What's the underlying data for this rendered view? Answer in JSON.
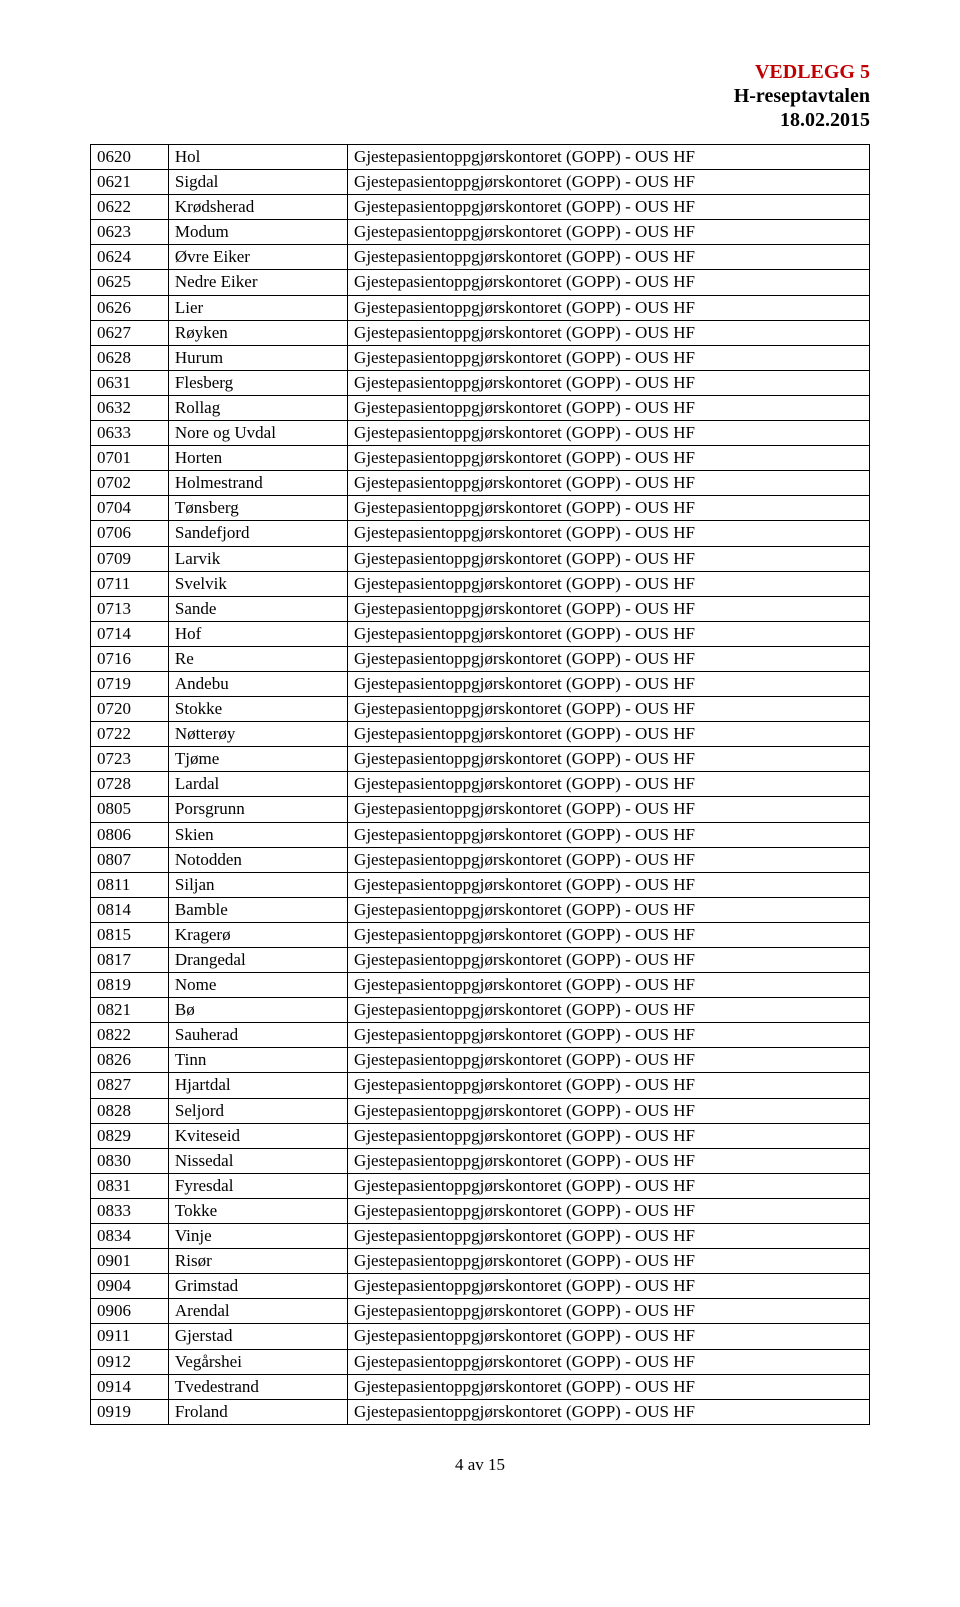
{
  "header": {
    "line1": "VEDLEGG 5",
    "line2": "H-reseptavtalen",
    "line3": "18.02.2015",
    "line1_color": "#c00000"
  },
  "table": {
    "rows": [
      [
        "0620",
        "Hol",
        "Gjestepasientoppgjørskontoret (GOPP) - OUS HF"
      ],
      [
        "0621",
        "Sigdal",
        "Gjestepasientoppgjørskontoret (GOPP) - OUS HF"
      ],
      [
        "0622",
        "Krødsherad",
        "Gjestepasientoppgjørskontoret (GOPP) - OUS HF"
      ],
      [
        "0623",
        "Modum",
        "Gjestepasientoppgjørskontoret (GOPP) - OUS HF"
      ],
      [
        "0624",
        "Øvre Eiker",
        "Gjestepasientoppgjørskontoret (GOPP) - OUS HF"
      ],
      [
        "0625",
        "Nedre Eiker",
        "Gjestepasientoppgjørskontoret (GOPP) - OUS HF"
      ],
      [
        "0626",
        "Lier",
        "Gjestepasientoppgjørskontoret (GOPP) - OUS HF"
      ],
      [
        "0627",
        "Røyken",
        "Gjestepasientoppgjørskontoret (GOPP) - OUS HF"
      ],
      [
        "0628",
        "Hurum",
        "Gjestepasientoppgjørskontoret (GOPP) - OUS HF"
      ],
      [
        "0631",
        "Flesberg",
        "Gjestepasientoppgjørskontoret (GOPP) - OUS HF"
      ],
      [
        "0632",
        "Rollag",
        "Gjestepasientoppgjørskontoret (GOPP) - OUS HF"
      ],
      [
        "0633",
        "Nore og Uvdal",
        "Gjestepasientoppgjørskontoret (GOPP) - OUS HF"
      ],
      [
        "0701",
        "Horten",
        "Gjestepasientoppgjørskontoret (GOPP) - OUS HF"
      ],
      [
        "0702",
        "Holmestrand",
        "Gjestepasientoppgjørskontoret (GOPP) - OUS HF"
      ],
      [
        "0704",
        "Tønsberg",
        "Gjestepasientoppgjørskontoret (GOPP) - OUS HF"
      ],
      [
        "0706",
        "Sandefjord",
        "Gjestepasientoppgjørskontoret (GOPP) - OUS HF"
      ],
      [
        "0709",
        "Larvik",
        "Gjestepasientoppgjørskontoret (GOPP) - OUS HF"
      ],
      [
        "0711",
        "Svelvik",
        "Gjestepasientoppgjørskontoret (GOPP) - OUS HF"
      ],
      [
        "0713",
        "Sande",
        "Gjestepasientoppgjørskontoret (GOPP) - OUS HF"
      ],
      [
        "0714",
        "Hof",
        "Gjestepasientoppgjørskontoret (GOPP) - OUS HF"
      ],
      [
        "0716",
        "Re",
        "Gjestepasientoppgjørskontoret (GOPP) - OUS HF"
      ],
      [
        "0719",
        "Andebu",
        "Gjestepasientoppgjørskontoret (GOPP) - OUS HF"
      ],
      [
        "0720",
        "Stokke",
        "Gjestepasientoppgjørskontoret (GOPP) - OUS HF"
      ],
      [
        "0722",
        "Nøtterøy",
        "Gjestepasientoppgjørskontoret (GOPP) - OUS HF"
      ],
      [
        "0723",
        "Tjøme",
        "Gjestepasientoppgjørskontoret (GOPP) - OUS HF"
      ],
      [
        "0728",
        "Lardal",
        "Gjestepasientoppgjørskontoret (GOPP) - OUS HF"
      ],
      [
        "0805",
        "Porsgrunn",
        "Gjestepasientoppgjørskontoret (GOPP) - OUS HF"
      ],
      [
        "0806",
        "Skien",
        "Gjestepasientoppgjørskontoret (GOPP) - OUS HF"
      ],
      [
        "0807",
        "Notodden",
        "Gjestepasientoppgjørskontoret (GOPP) - OUS HF"
      ],
      [
        "0811",
        "Siljan",
        "Gjestepasientoppgjørskontoret (GOPP) - OUS HF"
      ],
      [
        "0814",
        "Bamble",
        "Gjestepasientoppgjørskontoret (GOPP) - OUS HF"
      ],
      [
        "0815",
        "Kragerø",
        "Gjestepasientoppgjørskontoret (GOPP) - OUS HF"
      ],
      [
        "0817",
        "Drangedal",
        "Gjestepasientoppgjørskontoret (GOPP) - OUS HF"
      ],
      [
        "0819",
        "Nome",
        "Gjestepasientoppgjørskontoret (GOPP) - OUS HF"
      ],
      [
        "0821",
        "Bø",
        "Gjestepasientoppgjørskontoret (GOPP) - OUS HF"
      ],
      [
        "0822",
        "Sauherad",
        "Gjestepasientoppgjørskontoret (GOPP) - OUS HF"
      ],
      [
        "0826",
        "Tinn",
        "Gjestepasientoppgjørskontoret (GOPP) - OUS HF"
      ],
      [
        "0827",
        "Hjartdal",
        "Gjestepasientoppgjørskontoret (GOPP) - OUS HF"
      ],
      [
        "0828",
        "Seljord",
        "Gjestepasientoppgjørskontoret (GOPP) - OUS HF"
      ],
      [
        "0829",
        "Kviteseid",
        "Gjestepasientoppgjørskontoret (GOPP) - OUS HF"
      ],
      [
        "0830",
        "Nissedal",
        "Gjestepasientoppgjørskontoret (GOPP) - OUS HF"
      ],
      [
        "0831",
        "Fyresdal",
        "Gjestepasientoppgjørskontoret (GOPP) - OUS HF"
      ],
      [
        "0833",
        "Tokke",
        "Gjestepasientoppgjørskontoret (GOPP) - OUS HF"
      ],
      [
        "0834",
        "Vinje",
        "Gjestepasientoppgjørskontoret (GOPP) - OUS HF"
      ],
      [
        "0901",
        "Risør",
        "Gjestepasientoppgjørskontoret (GOPP) - OUS HF"
      ],
      [
        "0904",
        "Grimstad",
        "Gjestepasientoppgjørskontoret (GOPP) - OUS HF"
      ],
      [
        "0906",
        "Arendal",
        "Gjestepasientoppgjørskontoret (GOPP) - OUS HF"
      ],
      [
        "0911",
        "Gjerstad",
        "Gjestepasientoppgjørskontoret (GOPP) - OUS HF"
      ],
      [
        "0912",
        "Vegårshei",
        "Gjestepasientoppgjørskontoret (GOPP) - OUS HF"
      ],
      [
        "0914",
        "Tvedestrand",
        "Gjestepasientoppgjørskontoret (GOPP) - OUS HF"
      ],
      [
        "0919",
        "Froland",
        "Gjestepasientoppgjørskontoret (GOPP) - OUS HF"
      ]
    ]
  },
  "footer": {
    "text": "4 av 15"
  }
}
